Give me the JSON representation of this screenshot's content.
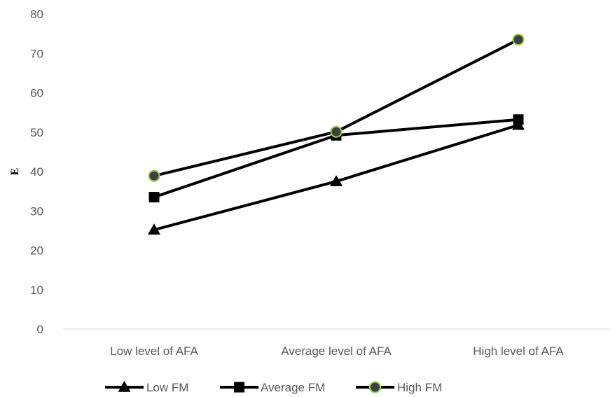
{
  "chart_data": {
    "type": "line",
    "categories": [
      "Low level of AFA",
      "Average level of AFA",
      "High level of AFA"
    ],
    "series": [
      {
        "name": "Low FM",
        "values": [
          25.2,
          37.5,
          51.8
        ],
        "marker": "triangle",
        "color": "#000000"
      },
      {
        "name": "Average FM",
        "values": [
          33.5,
          49.2,
          53.2
        ],
        "marker": "square",
        "color": "#000000"
      },
      {
        "name": "High FM",
        "values": [
          38.9,
          50.1,
          73.5
        ],
        "marker": "circle",
        "color": "#000000",
        "marker_fill": "#404040",
        "marker_edge": "#92d050"
      }
    ],
    "title": "",
    "xlabel": "",
    "ylabel": "E",
    "ylim": [
      0,
      80
    ],
    "yticks": [
      0,
      10,
      20,
      30,
      40,
      50,
      60,
      70,
      80
    ],
    "grid": false,
    "legend": "bottom"
  }
}
